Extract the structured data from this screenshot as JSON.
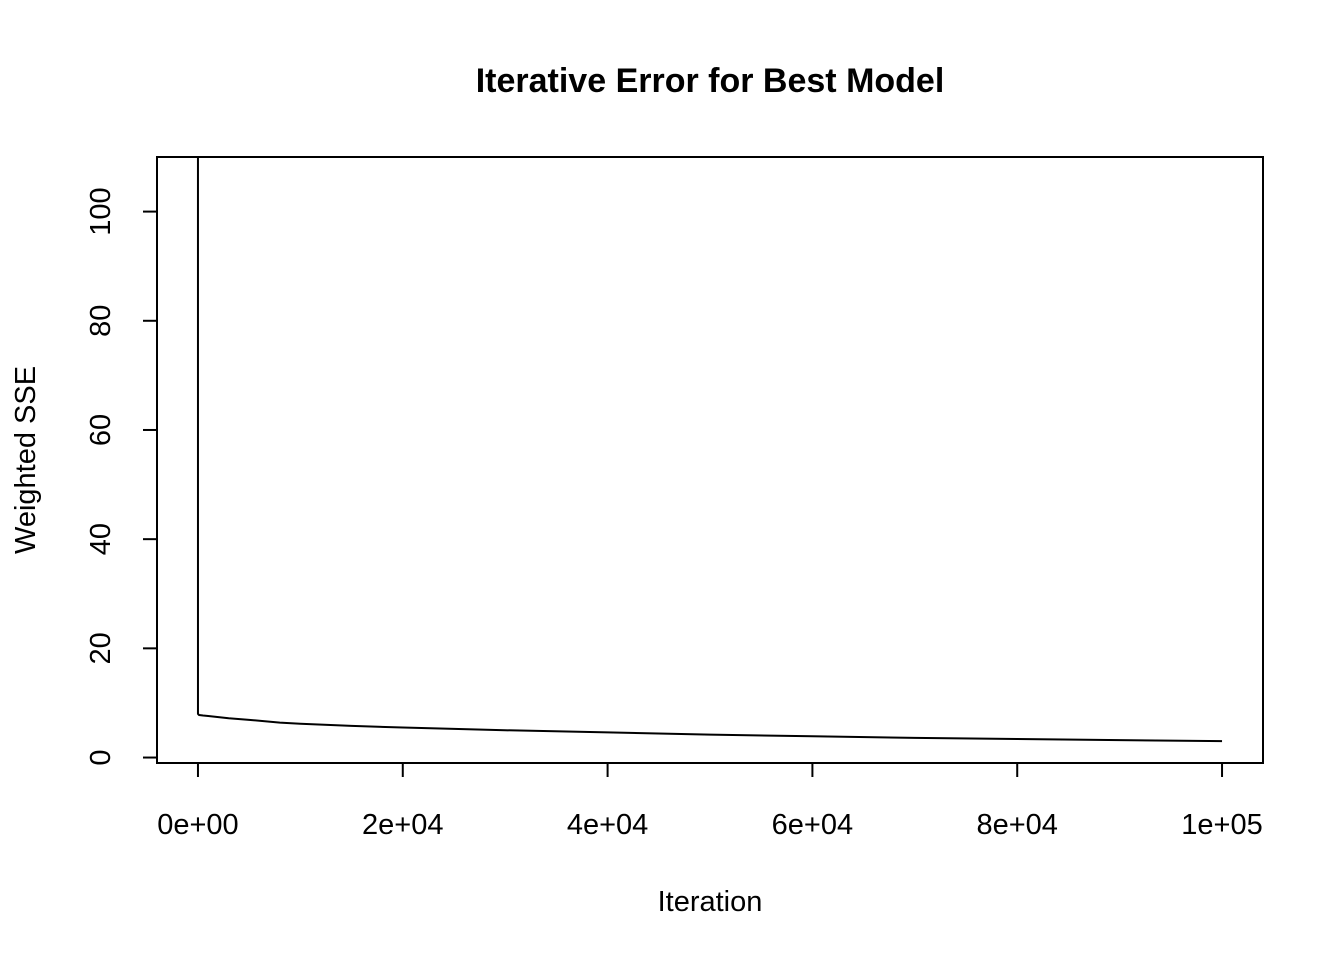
{
  "chart_data": {
    "type": "line",
    "title": "Iterative Error for Best Model",
    "xlabel": "Iteration",
    "ylabel": "Weighted SSE",
    "xlim": [
      -4000,
      104000
    ],
    "ylim": [
      -1,
      110
    ],
    "x_ticks": [
      0,
      20000,
      40000,
      60000,
      80000,
      100000
    ],
    "x_tick_labels": [
      "0e+00",
      "2e+04",
      "4e+04",
      "6e+04",
      "8e+04",
      "1e+05"
    ],
    "y_ticks": [
      0,
      20,
      40,
      60,
      80,
      100
    ],
    "y_tick_labels": [
      "0",
      "20",
      "40",
      "60",
      "80",
      "100"
    ],
    "grid": false,
    "series": [
      {
        "color": "#000000",
        "x": [
          0,
          1,
          50,
          100,
          500,
          1000,
          2000,
          3000,
          5000,
          8000,
          10000,
          15000,
          20000,
          30000,
          40000,
          50000,
          60000,
          70000,
          80000,
          90000,
          100000
        ],
        "y": [
          110,
          8.0,
          7.9,
          7.8,
          7.7,
          7.6,
          7.4,
          7.2,
          6.9,
          6.4,
          6.2,
          5.8,
          5.5,
          5.0,
          4.6,
          4.2,
          3.9,
          3.6,
          3.4,
          3.2,
          3.0
        ]
      }
    ]
  }
}
